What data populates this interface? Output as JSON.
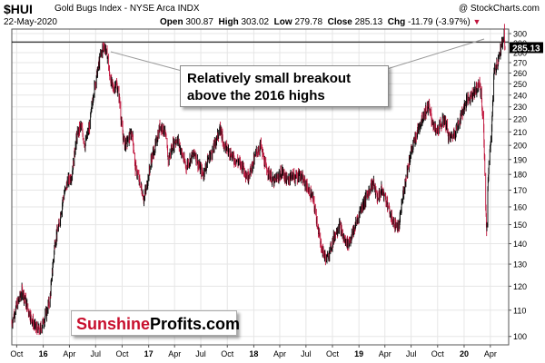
{
  "header": {
    "symbol": "$HUI",
    "name": "Gold Bugs Index - NYSE Arca INDX",
    "date": "22-May-2020",
    "watermark": "@ StockCharts.com",
    "open_label": "Open",
    "open": "300.87",
    "high_label": "High",
    "high": "303.02",
    "low_label": "Low",
    "low": "279.78",
    "close_label": "Close",
    "close": "285.13",
    "chg_label": "Chg",
    "chg": "-11.79 (-3.97%)"
  },
  "annotation": {
    "line1": "Relatively small breakout",
    "line2": "above the 2016 highs"
  },
  "logo": {
    "part1": "Sunshine",
    "part2": "Profits.com"
  },
  "colors": {
    "up": "#000000",
    "down": "#c0143c",
    "hline": "#000000",
    "logo_red": "#c8102e"
  },
  "chart_data": {
    "type": "ohlc",
    "title": "$HUI Gold Bugs Index - NYSE Arca INDX",
    "last_value_label": "285.13",
    "horizontal_line": 291,
    "y_scale": "log",
    "ylim": [
      97,
      305
    ],
    "y_ticks": [
      100,
      110,
      120,
      130,
      140,
      150,
      160,
      170,
      180,
      190,
      200,
      210,
      220,
      230,
      240,
      250,
      260,
      270,
      280,
      290,
      300
    ],
    "x_range": [
      "2015-09-14",
      "2020-05-22"
    ],
    "x_ticks": [
      {
        "label": "Oct",
        "date": "2015-10-01"
      },
      {
        "label": "16",
        "date": "2016-01-01"
      },
      {
        "label": "Apr",
        "date": "2016-04-01"
      },
      {
        "label": "Jul",
        "date": "2016-07-01"
      },
      {
        "label": "Oct",
        "date": "2016-10-01"
      },
      {
        "label": "17",
        "date": "2017-01-01"
      },
      {
        "label": "Apr",
        "date": "2017-04-01"
      },
      {
        "label": "Jul",
        "date": "2017-07-01"
      },
      {
        "label": "Oct",
        "date": "2017-10-01"
      },
      {
        "label": "18",
        "date": "2018-01-01"
      },
      {
        "label": "Apr",
        "date": "2018-04-01"
      },
      {
        "label": "Jul",
        "date": "2018-07-01"
      },
      {
        "label": "Oct",
        "date": "2018-10-01"
      },
      {
        "label": "19",
        "date": "2019-01-01"
      },
      {
        "label": "Apr",
        "date": "2019-04-01"
      },
      {
        "label": "Jul",
        "date": "2019-07-01"
      },
      {
        "label": "Oct",
        "date": "2019-10-01"
      },
      {
        "label": "20",
        "date": "2020-01-01"
      },
      {
        "label": "Apr",
        "date": "2020-04-01"
      }
    ],
    "price_path": [
      [
        "2015-09-14",
        105
      ],
      [
        "2015-10-01",
        112
      ],
      [
        "2015-10-20",
        118
      ],
      [
        "2015-11-10",
        110
      ],
      [
        "2015-12-01",
        104
      ],
      [
        "2015-12-20",
        102
      ],
      [
        "2016-01-10",
        108
      ],
      [
        "2016-01-25",
        115
      ],
      [
        "2016-02-10",
        140
      ],
      [
        "2016-02-25",
        150
      ],
      [
        "2016-03-10",
        165
      ],
      [
        "2016-03-25",
        175
      ],
      [
        "2016-04-10",
        180
      ],
      [
        "2016-04-25",
        205
      ],
      [
        "2016-05-10",
        215
      ],
      [
        "2016-05-25",
        200
      ],
      [
        "2016-06-10",
        215
      ],
      [
        "2016-06-25",
        245
      ],
      [
        "2016-07-10",
        265
      ],
      [
        "2016-07-20",
        280
      ],
      [
        "2016-07-31",
        288
      ],
      [
        "2016-08-10",
        278
      ],
      [
        "2016-08-20",
        255
      ],
      [
        "2016-09-01",
        245
      ],
      [
        "2016-09-10",
        250
      ],
      [
        "2016-09-20",
        240
      ],
      [
        "2016-10-01",
        210
      ],
      [
        "2016-10-10",
        200
      ],
      [
        "2016-10-25",
        205
      ],
      [
        "2016-11-05",
        210
      ],
      [
        "2016-11-15",
        185
      ],
      [
        "2016-12-01",
        175
      ],
      [
        "2016-12-15",
        165
      ],
      [
        "2016-12-25",
        172
      ],
      [
        "2017-01-10",
        190
      ],
      [
        "2017-01-25",
        200
      ],
      [
        "2017-02-10",
        215
      ],
      [
        "2017-02-25",
        212
      ],
      [
        "2017-03-10",
        190
      ],
      [
        "2017-03-25",
        200
      ],
      [
        "2017-04-10",
        205
      ],
      [
        "2017-04-25",
        195
      ],
      [
        "2017-05-10",
        185
      ],
      [
        "2017-05-25",
        190
      ],
      [
        "2017-06-10",
        195
      ],
      [
        "2017-06-25",
        185
      ],
      [
        "2017-07-10",
        180
      ],
      [
        "2017-07-25",
        190
      ],
      [
        "2017-08-10",
        195
      ],
      [
        "2017-08-25",
        205
      ],
      [
        "2017-09-08",
        212
      ],
      [
        "2017-09-20",
        200
      ],
      [
        "2017-10-10",
        195
      ],
      [
        "2017-10-25",
        190
      ],
      [
        "2017-11-10",
        188
      ],
      [
        "2017-11-25",
        185
      ],
      [
        "2017-12-10",
        178
      ],
      [
        "2017-12-25",
        185
      ],
      [
        "2018-01-10",
        195
      ],
      [
        "2018-01-25",
        200
      ],
      [
        "2018-02-10",
        185
      ],
      [
        "2018-02-25",
        180
      ],
      [
        "2018-03-10",
        175
      ],
      [
        "2018-03-25",
        178
      ],
      [
        "2018-04-10",
        182
      ],
      [
        "2018-04-25",
        176
      ],
      [
        "2018-05-10",
        180
      ],
      [
        "2018-05-25",
        178
      ],
      [
        "2018-06-10",
        180
      ],
      [
        "2018-06-25",
        175
      ],
      [
        "2018-07-10",
        170
      ],
      [
        "2018-07-25",
        165
      ],
      [
        "2018-08-10",
        150
      ],
      [
        "2018-08-20",
        140
      ],
      [
        "2018-09-01",
        135
      ],
      [
        "2018-09-12",
        132
      ],
      [
        "2018-09-25",
        138
      ],
      [
        "2018-10-10",
        145
      ],
      [
        "2018-10-25",
        150
      ],
      [
        "2018-11-10",
        142
      ],
      [
        "2018-11-25",
        140
      ],
      [
        "2018-12-10",
        145
      ],
      [
        "2018-12-25",
        152
      ],
      [
        "2019-01-10",
        160
      ],
      [
        "2019-01-25",
        165
      ],
      [
        "2019-02-10",
        172
      ],
      [
        "2019-02-20",
        175
      ],
      [
        "2019-03-05",
        165
      ],
      [
        "2019-03-20",
        170
      ],
      [
        "2019-04-05",
        165
      ],
      [
        "2019-04-20",
        155
      ],
      [
        "2019-05-05",
        150
      ],
      [
        "2019-05-20",
        148
      ],
      [
        "2019-06-01",
        165
      ],
      [
        "2019-06-15",
        180
      ],
      [
        "2019-06-30",
        195
      ],
      [
        "2019-07-15",
        205
      ],
      [
        "2019-07-30",
        215
      ],
      [
        "2019-08-15",
        225
      ],
      [
        "2019-08-30",
        230
      ],
      [
        "2019-09-10",
        220
      ],
      [
        "2019-09-25",
        210
      ],
      [
        "2019-10-10",
        215
      ],
      [
        "2019-10-25",
        220
      ],
      [
        "2019-11-10",
        205
      ],
      [
        "2019-11-25",
        208
      ],
      [
        "2019-12-10",
        215
      ],
      [
        "2019-12-25",
        225
      ],
      [
        "2020-01-10",
        235
      ],
      [
        "2020-01-25",
        240
      ],
      [
        "2020-02-10",
        245
      ],
      [
        "2020-02-24",
        250
      ],
      [
        "2020-03-02",
        235
      ],
      [
        "2020-03-09",
        210
      ],
      [
        "2020-03-16",
        160
      ],
      [
        "2020-03-19",
        145
      ],
      [
        "2020-03-26",
        185
      ],
      [
        "2020-04-05",
        210
      ],
      [
        "2020-04-14",
        260
      ],
      [
        "2020-04-25",
        270
      ],
      [
        "2020-05-05",
        280
      ],
      [
        "2020-05-12",
        290
      ],
      [
        "2020-05-19",
        302
      ],
      [
        "2020-05-22",
        285
      ]
    ]
  }
}
